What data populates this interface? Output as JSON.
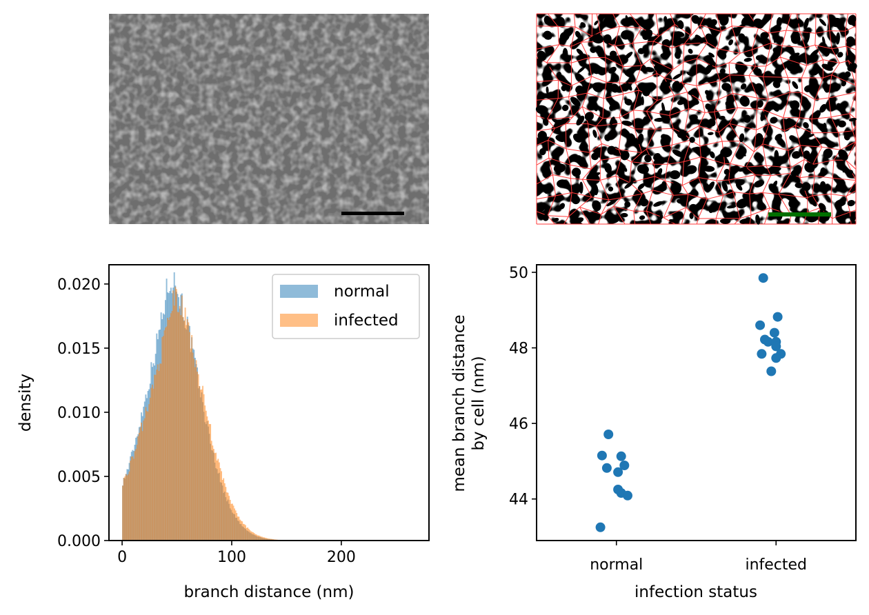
{
  "images": [
    {
      "name": "sem-micrograph",
      "scale_bar_color": "#000000"
    },
    {
      "name": "segmented-network",
      "scale_bar_color": "#007000",
      "boundary_color": "#ff3030"
    }
  ],
  "chart_data": [
    {
      "type": "histogram",
      "title": "",
      "xlabel": "branch distance (nm)",
      "ylabel": "density",
      "xlim": [
        -12,
        280
      ],
      "ylim": [
        0,
        0.0215
      ],
      "xticks": [
        0,
        100,
        200
      ],
      "xtick_labels": [
        "0",
        "100",
        "200"
      ],
      "yticks": [
        0,
        0.005,
        0.01,
        0.015,
        0.02
      ],
      "ytick_labels": [
        "0.000",
        "0.005",
        "0.010",
        "0.015",
        "0.020"
      ],
      "grid": false,
      "legend": {
        "position": "top-right",
        "entries": [
          "normal",
          "infected"
        ]
      },
      "bin_width": 1,
      "series": [
        {
          "name": "normal",
          "color": "#1f77b4",
          "alpha": 0.5,
          "mode_nm": 43,
          "peak_density": 0.0205,
          "start_density": 0.0045,
          "max_nm": 150
        },
        {
          "name": "infected",
          "color": "#ff7f0e",
          "alpha": 0.5,
          "mode_nm": 47,
          "peak_density": 0.0189,
          "start_density": 0.0045,
          "max_nm": 150
        }
      ]
    },
    {
      "type": "scatter",
      "title": "",
      "xlabel": "infection status",
      "ylabel": "mean branch distance\nby cell (nm)",
      "ylabel_lines": [
        "mean branch distance",
        "by cell (nm)"
      ],
      "categories": [
        "normal",
        "infected"
      ],
      "yticks": [
        44,
        46,
        48,
        50
      ],
      "ytick_labels": [
        "44",
        "46",
        "48",
        "50"
      ],
      "ylim": [
        42.9,
        50.2
      ],
      "grid": false,
      "color": "#1f77b4",
      "series": [
        {
          "category": "normal",
          "jitter": [
            -0.05,
            -0.09,
            0.03,
            0.05,
            -0.06,
            0.01,
            0.01,
            0.03,
            0.07,
            -0.1
          ],
          "values": [
            45.71,
            45.15,
            45.13,
            44.89,
            44.82,
            44.71,
            44.25,
            44.16,
            44.09,
            43.25
          ]
        },
        {
          "category": "infected",
          "jitter": [
            -0.08,
            0.01,
            -0.1,
            -0.01,
            -0.07,
            -0.05,
            0.0,
            -0.0,
            -0.09,
            0.03,
            -0.0,
            -0.03
          ],
          "values": [
            49.85,
            48.82,
            48.6,
            48.4,
            48.22,
            48.16,
            48.16,
            48.04,
            47.84,
            47.84,
            47.73,
            47.38
          ]
        }
      ]
    }
  ]
}
